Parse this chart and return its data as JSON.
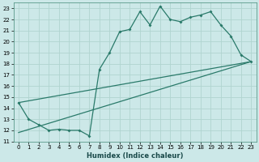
{
  "xlabel": "Humidex (Indice chaleur)",
  "bg_color": "#cce8e8",
  "grid_color": "#b0d4d0",
  "line_color": "#2a7a6a",
  "xlim": [
    -0.5,
    23.5
  ],
  "ylim": [
    11,
    23.5
  ],
  "xticks": [
    0,
    1,
    2,
    3,
    4,
    5,
    6,
    7,
    8,
    9,
    10,
    11,
    12,
    13,
    14,
    15,
    16,
    17,
    18,
    19,
    20,
    21,
    22,
    23
  ],
  "yticks": [
    11,
    12,
    13,
    14,
    15,
    16,
    17,
    18,
    19,
    20,
    21,
    22,
    23
  ],
  "line1_x": [
    0,
    1,
    2,
    3,
    4,
    5,
    6,
    7,
    8,
    9,
    10,
    11,
    12,
    13,
    14,
    15,
    16,
    17,
    18,
    19,
    20,
    21,
    22,
    23
  ],
  "line1_y": [
    14.5,
    13.0,
    12.5,
    12.0,
    12.1,
    12.0,
    12.0,
    11.5,
    17.5,
    19.0,
    20.9,
    21.1,
    22.7,
    21.5,
    23.2,
    22.0,
    21.8,
    22.2,
    22.4,
    22.7,
    21.5,
    20.5,
    18.8,
    18.2
  ],
  "line2_x": [
    0,
    23
  ],
  "line2_y": [
    14.5,
    18.2
  ],
  "line3_x": [
    0,
    23
  ],
  "line3_y": [
    11.8,
    18.2
  ]
}
